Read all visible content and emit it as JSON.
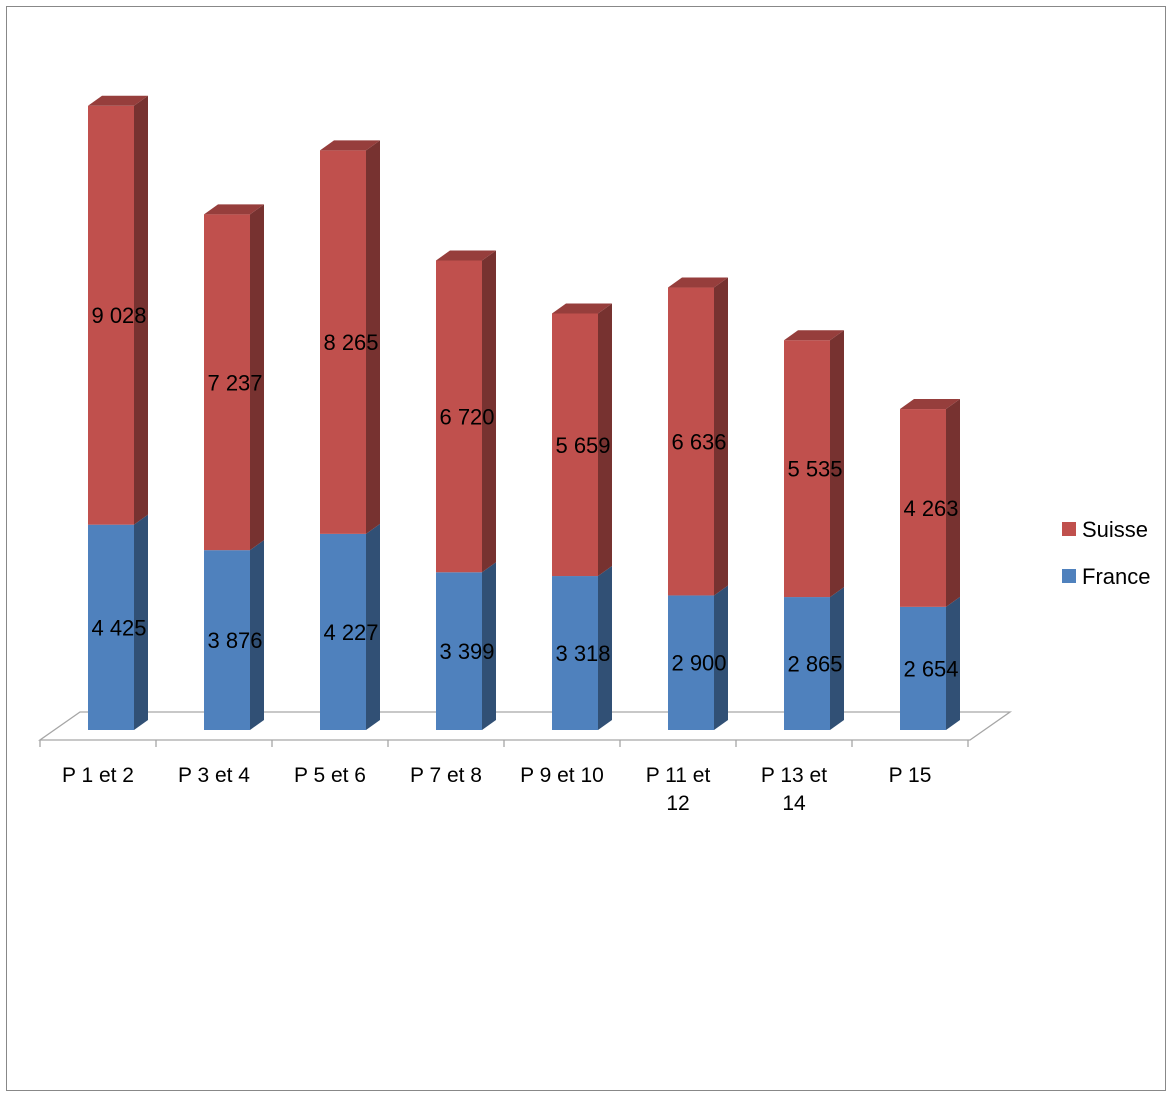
{
  "chart_data": {
    "type": "bar",
    "stacked": true,
    "three_d": true,
    "categories": [
      [
        "P 1 et 2"
      ],
      [
        "P 3 et 4"
      ],
      [
        "P 5 et 6"
      ],
      [
        "P 7 et 8"
      ],
      [
        "P 9 et 10"
      ],
      [
        "P 11 et",
        "12"
      ],
      [
        "P 13 et",
        "14"
      ],
      [
        "P 15"
      ]
    ],
    "series": [
      {
        "name": "France",
        "color": "#4F81BD",
        "values": [
          4425,
          3876,
          4227,
          3399,
          3318,
          2900,
          2865,
          2654
        ],
        "labels": [
          "4 425",
          "3 876",
          "4 227",
          "3 399",
          "3 318",
          "2 900",
          "2 865",
          "2 654"
        ]
      },
      {
        "name": "Suisse",
        "color": "#C0504D",
        "values": [
          9028,
          7237,
          8265,
          6720,
          5659,
          6636,
          5535,
          4263
        ],
        "labels": [
          "9 028",
          "7 237",
          "8 265",
          "6 720",
          "5 659",
          "6 636",
          "5 535",
          "4 263"
        ]
      }
    ],
    "legend": {
      "position": "right",
      "entries": [
        "Suisse",
        "France"
      ]
    },
    "grid": false,
    "title": "",
    "xlabel": "",
    "ylabel": ""
  }
}
